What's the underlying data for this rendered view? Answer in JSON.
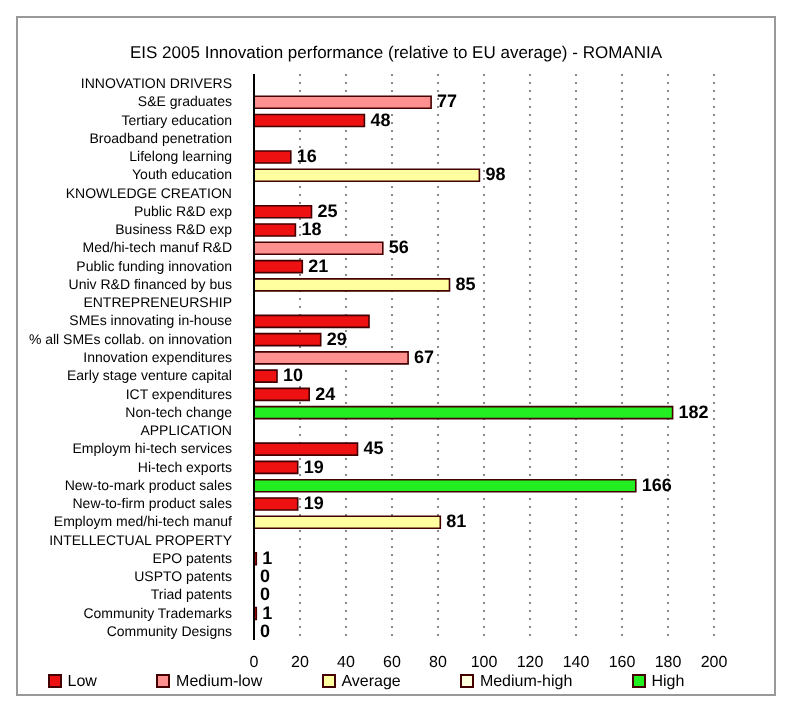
{
  "chart_data": {
    "type": "bar",
    "orientation": "horizontal",
    "stacked": true,
    "title": "EIS 2005 Innovation performance (relative to EU average) - ROMANIA",
    "categories": [
      "INNOVATION DRIVERS",
      "S&E graduates",
      "Tertiary education",
      "Broadband penetration",
      "Lifelong learning",
      "Youth education",
      "KNOWLEDGE CREATION",
      "Public R&D exp",
      "Business R&D exp",
      "Med/hi-tech manuf R&D",
      "Public funding innovation",
      "Univ R&D financed by bus",
      "ENTREPRENEURSHIP",
      "SMEs innovating in-house",
      "% all SMEs collab. on innovation",
      "Innovation expenditures",
      "Early stage venture capital",
      "ICT expenditures",
      "Non-tech change",
      "APPLICATION",
      "Employm hi-tech services",
      "Hi-tech exports",
      "New-to-mark product sales",
      "New-to-firm product sales",
      "Employm med/hi-tech manuf",
      "INTELLECTUAL PROPERTY",
      "EPO patents",
      "USPTO patents",
      "Triad patents",
      "Community Trademarks",
      "Community Designs"
    ],
    "series": [
      {
        "name": "Low",
        "color": "#ee1111",
        "values": [
          null,
          null,
          48,
          null,
          16,
          null,
          null,
          25,
          18,
          null,
          21,
          null,
          null,
          50,
          29,
          null,
          10,
          24,
          null,
          null,
          45,
          19,
          null,
          19,
          null,
          null,
          1,
          0,
          0,
          1,
          0
        ],
        "value_labels": [
          null,
          null,
          "48",
          null,
          "16",
          null,
          null,
          "25",
          "18",
          null,
          "21",
          null,
          null,
          null,
          "29",
          null,
          "10",
          "24",
          null,
          null,
          "45",
          "19",
          null,
          "19",
          null,
          null,
          "1",
          "0",
          "0",
          "1",
          "0"
        ]
      },
      {
        "name": "Medium-low",
        "color": "#ff9090",
        "values": [
          null,
          77,
          null,
          null,
          null,
          null,
          null,
          null,
          null,
          56,
          null,
          null,
          null,
          null,
          null,
          67,
          null,
          null,
          null,
          null,
          null,
          null,
          null,
          null,
          null,
          null,
          null,
          null,
          null,
          null,
          null
        ],
        "value_labels": [
          null,
          "77",
          null,
          null,
          null,
          null,
          null,
          null,
          null,
          "56",
          null,
          null,
          null,
          null,
          null,
          "67",
          null,
          null,
          null,
          null,
          null,
          null,
          null,
          null,
          null,
          null,
          null,
          null,
          null,
          null,
          null
        ]
      },
      {
        "name": "Average",
        "color": "#ffffa0",
        "values": [
          null,
          null,
          null,
          null,
          null,
          98,
          null,
          null,
          null,
          null,
          null,
          85,
          null,
          null,
          null,
          null,
          null,
          null,
          null,
          null,
          null,
          null,
          null,
          null,
          81,
          null,
          null,
          null,
          null,
          null,
          null
        ],
        "value_labels": [
          null,
          null,
          null,
          null,
          null,
          "98",
          null,
          null,
          null,
          null,
          null,
          "85",
          null,
          null,
          null,
          null,
          null,
          null,
          null,
          null,
          null,
          null,
          null,
          null,
          "81",
          null,
          null,
          null,
          null,
          null,
          null
        ]
      },
      {
        "name": "Medium-high",
        "color": "#ffffe0",
        "values": [
          null,
          null,
          null,
          null,
          null,
          null,
          null,
          null,
          null,
          null,
          null,
          null,
          null,
          null,
          null,
          null,
          null,
          null,
          null,
          null,
          null,
          null,
          null,
          null,
          null,
          null,
          null,
          null,
          null,
          null,
          null
        ]
      },
      {
        "name": "High",
        "color": "#22ee22",
        "values": [
          null,
          null,
          null,
          null,
          null,
          null,
          null,
          null,
          null,
          null,
          null,
          null,
          null,
          null,
          null,
          null,
          null,
          null,
          182,
          null,
          null,
          null,
          166,
          null,
          null,
          null,
          null,
          null,
          null,
          null,
          null
        ],
        "value_labels": [
          null,
          null,
          null,
          null,
          null,
          null,
          null,
          null,
          null,
          null,
          null,
          null,
          null,
          null,
          null,
          null,
          null,
          null,
          "182",
          null,
          null,
          null,
          "166",
          null,
          null,
          null,
          null,
          null,
          null,
          null,
          null
        ]
      }
    ],
    "xlim": [
      0,
      200
    ],
    "xticks": [
      0,
      20,
      40,
      60,
      80,
      100,
      120,
      140,
      160,
      180,
      200
    ],
    "grid": "x",
    "legend": "bottom"
  }
}
